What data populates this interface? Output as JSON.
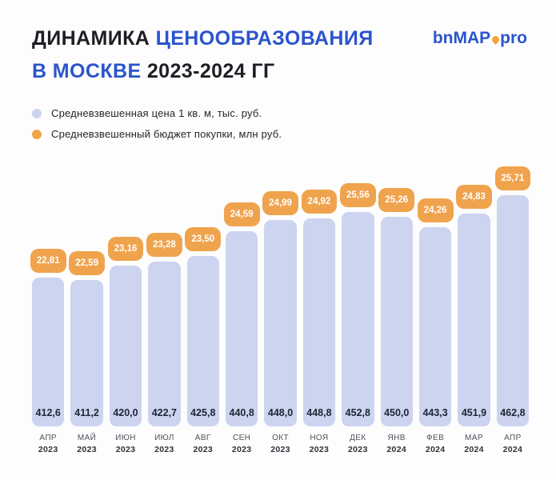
{
  "header": {
    "title": {
      "line1_dark": "ДИНАМИКА",
      "line1_blue": "ЦЕНООБРАЗОВАНИЯ",
      "line2_blue": "В МОСКВЕ",
      "line2_dark": "2023-2024 ГГ",
      "accent_color": "#2b54cc",
      "dark_color": "#1d1f24"
    },
    "logo": {
      "part1": "bn",
      "part2": "MAP",
      "part3": "pro",
      "pin_icon": "map-pin-dot",
      "pin_color": "#f2a43c",
      "text_color": "#2b54cc"
    }
  },
  "legend": {
    "items": [
      {
        "label": "Средневзвешенная цена 1 кв. м, тыс. руб.",
        "color": "#ccd4f0"
      },
      {
        "label": "Средневзвешенный бюджет покупки, млн руб.",
        "color": "#f2a44a"
      }
    ]
  },
  "chart": {
    "bar_color": "#ccd4f0",
    "badge_color": "#f0a34d",
    "columns": [
      {
        "budget_label": "22,81",
        "price_label": "412,6",
        "month": "АПР",
        "year": "2023",
        "price_value": 412.6
      },
      {
        "budget_label": "22,59",
        "price_label": "411,2",
        "month": "МАЙ",
        "year": "2023",
        "price_value": 411.2
      },
      {
        "budget_label": "23,16",
        "price_label": "420,0",
        "month": "ИЮН",
        "year": "2023",
        "price_value": 420.0
      },
      {
        "budget_label": "23,28",
        "price_label": "422,7",
        "month": "ИЮЛ",
        "year": "2023",
        "price_value": 422.7
      },
      {
        "budget_label": "23,50",
        "price_label": "425,8",
        "month": "АВГ",
        "year": "2023",
        "price_value": 425.8
      },
      {
        "budget_label": "24,59",
        "price_label": "440,8",
        "month": "СЕН",
        "year": "2023",
        "price_value": 440.8
      },
      {
        "budget_label": "24,99",
        "price_label": "448,0",
        "month": "ОКТ",
        "year": "2023",
        "price_value": 448.0
      },
      {
        "budget_label": "24,92",
        "price_label": "448,8",
        "month": "НОЯ",
        "year": "2023",
        "price_value": 448.8
      },
      {
        "budget_label": "25,56",
        "price_label": "452,8",
        "month": "ДЕК",
        "year": "2023",
        "price_value": 452.8
      },
      {
        "budget_label": "25,26",
        "price_label": "450,0",
        "month": "ЯНВ",
        "year": "2024",
        "price_value": 450.0
      },
      {
        "budget_label": "24,26",
        "price_label": "443,3",
        "month": "ФЕВ",
        "year": "2024",
        "price_value": 443.3
      },
      {
        "budget_label": "24,83",
        "price_label": "451,9",
        "month": "МАР",
        "year": "2024",
        "price_value": 451.9
      },
      {
        "budget_label": "25,71",
        "price_label": "462,8",
        "month": "АПР",
        "year": "2024",
        "price_value": 462.8
      }
    ]
  },
  "chart_data": {
    "type": "bar",
    "title": "Динамика ценообразования в Москве 2023-2024 гг",
    "categories": [
      "АПР 2023",
      "МАЙ 2023",
      "ИЮН 2023",
      "ИЮЛ 2023",
      "АВГ 2023",
      "СЕН 2023",
      "ОКТ 2023",
      "НОЯ 2023",
      "ДЕК 2023",
      "ЯНВ 2024",
      "ФЕВ 2024",
      "МАР 2024",
      "АПР 2024"
    ],
    "series": [
      {
        "name": "Средневзвешенная цена 1 кв. м, тыс. руб.",
        "values": [
          412.6,
          411.2,
          420.0,
          422.7,
          425.8,
          440.8,
          448.0,
          448.8,
          452.8,
          450.0,
          443.3,
          451.9,
          462.8
        ]
      },
      {
        "name": "Средневзвешенный бюджет покупки, млн руб.",
        "values": [
          22.81,
          22.59,
          23.16,
          23.28,
          23.5,
          24.59,
          24.99,
          24.92,
          25.56,
          25.26,
          24.26,
          24.83,
          25.71
        ]
      }
    ],
    "legend_position": "top-left",
    "grid": false,
    "value_labels": "price shown inside bar bottom, budget shown in orange badge above bar"
  }
}
